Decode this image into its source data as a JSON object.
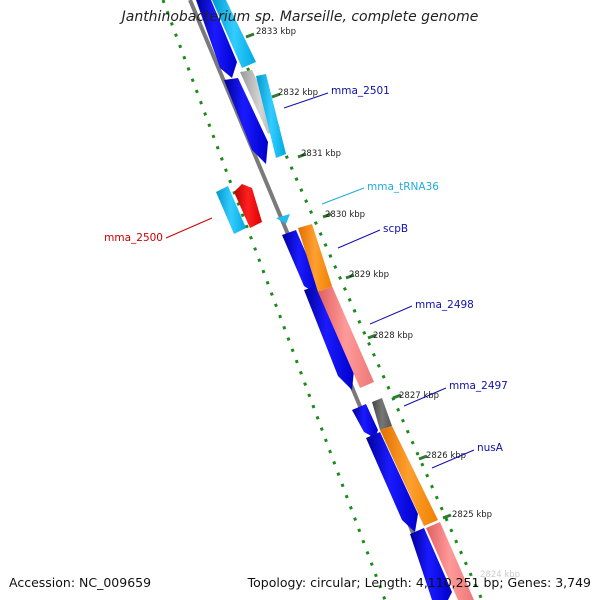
{
  "title": "Janthinobacterium sp. Marseille, complete genome",
  "footer": {
    "accession": "Accession: NC_009659",
    "summary": "Topology: circular; Length: 4,110,251 bp; Genes: 3,749"
  },
  "colors": {
    "backbone": "#7a7a7a",
    "cds_strand": "#0000ee",
    "tick": "#2f7a2f",
    "dots": "#1a8a1a",
    "label_blue": "#1010aa",
    "label_cyan": "#22aadd",
    "label_red": "#cc0000"
  },
  "ticks": [
    {
      "label": "2833 kbp"
    },
    {
      "label": "2832 kbp"
    },
    {
      "label": "2831 kbp"
    },
    {
      "label": "2830 kbp"
    },
    {
      "label": "2829 kbp"
    },
    {
      "label": "2828 kbp"
    },
    {
      "label": "2827 kbp"
    },
    {
      "label": "2826 kbp"
    },
    {
      "label": "2825 kbp"
    },
    {
      "label": "2824 kbp"
    }
  ],
  "gene_labels": [
    {
      "name": "mma_2501",
      "color": "#1010aa"
    },
    {
      "name": "mma_tRNA36",
      "color": "#22aadd"
    },
    {
      "name": "mma_2500",
      "color": "#cc0000"
    },
    {
      "name": "scpB",
      "color": "#1010aa"
    },
    {
      "name": "mma_2498",
      "color": "#1010aa"
    },
    {
      "name": "mma_2497",
      "color": "#1010aa"
    },
    {
      "name": "nusA",
      "color": "#1010aa"
    }
  ]
}
